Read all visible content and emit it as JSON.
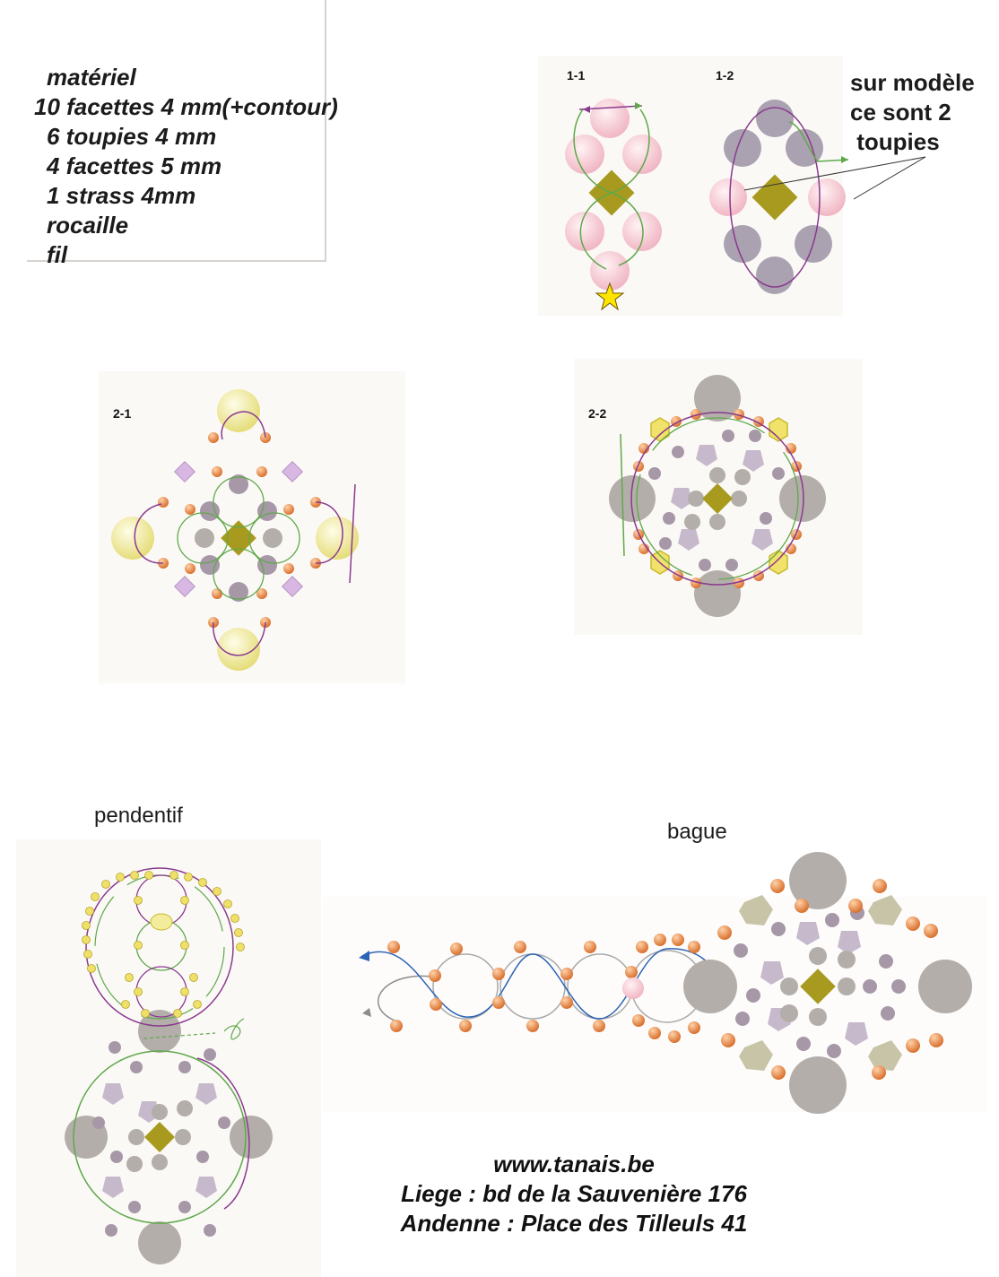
{
  "materials": {
    "title": "matériel",
    "items": [
      "10 facettes 4 mm(+contour)",
      "6 toupies 4 mm",
      "4 facettes 5 mm",
      "1 strass 4mm",
      "rocaille",
      "fil"
    ]
  },
  "note": {
    "lines": [
      "sur modèle",
      "ce sont 2",
      " toupies"
    ]
  },
  "steps": {
    "s11": "1-1",
    "s12": "1-2",
    "s21": "2-1",
    "s22": "2-2"
  },
  "captions": {
    "pendant": "pendentif",
    "ring": "bague"
  },
  "contact": {
    "site": "www.tanais.be",
    "liege": "Liege : bd de la Sauvenière 176",
    "andenne": "Andenne : Place des Tilleuls 41"
  },
  "colors": {
    "pink": "#f4c6cf",
    "olive": "#a89a1e",
    "orange": "#e58a4a",
    "grey": "#b4aeaa",
    "mauve": "#a798a8",
    "lilac": "#cdb8cf",
    "yellow": "#f2ec9c",
    "green": "#5fa84a",
    "purple": "#8a3a8e",
    "blue": "#2c63b5"
  },
  "icons": [
    "star-icon"
  ]
}
